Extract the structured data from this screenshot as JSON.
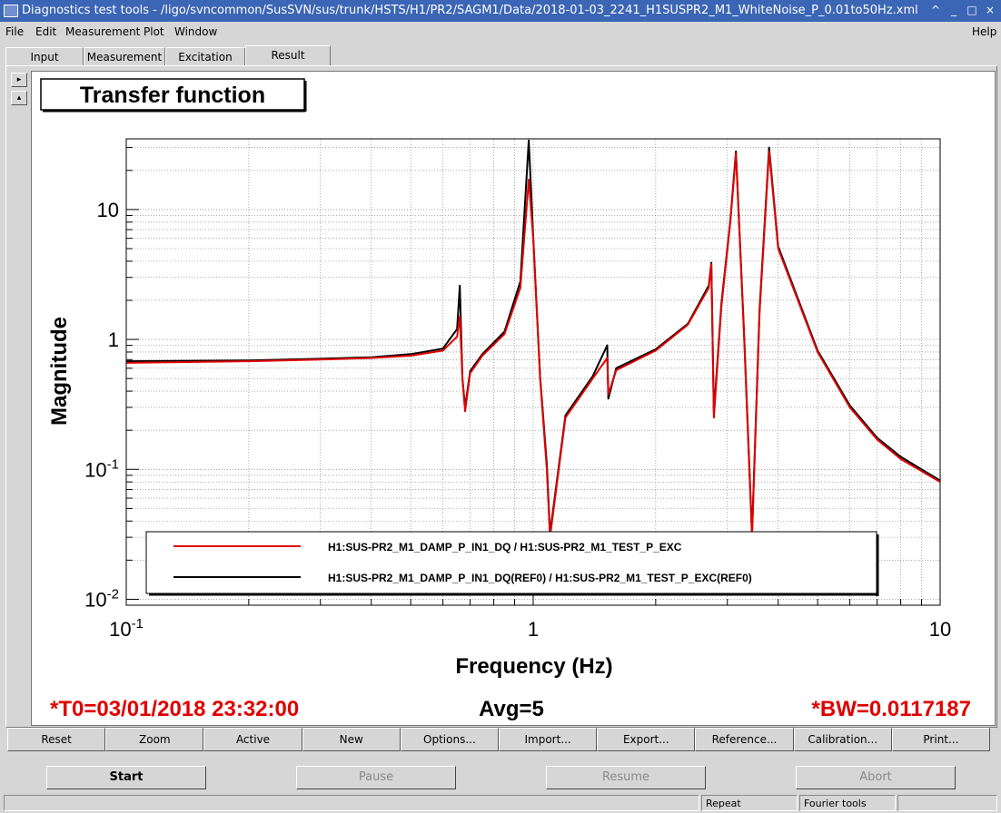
{
  "window": {
    "title": "Diagnostics test tools - /ligo/svncommon/SusSVN/sus/trunk/HSTS/H1/PR2/SAGM1/Data/2018-01-03_2241_H1SUSPR2_M1_WhiteNoise_P_0.01to50Hz.xml",
    "controls": [
      "^",
      "_",
      "□",
      "×"
    ]
  },
  "menu": {
    "file": "File",
    "edit": "Edit",
    "measurement": "Measurement",
    "plot": "Plot",
    "window": "Window",
    "help": "Help"
  },
  "tabs": [
    {
      "label": "Input"
    },
    {
      "label": "Measurement"
    },
    {
      "label": "Excitation"
    },
    {
      "label": "Result",
      "active": true
    }
  ],
  "side_buttons": {
    "up": "▸",
    "down": "▴"
  },
  "plot": {
    "title_box": "Transfer function",
    "t0": "*T0=03/01/2018 23:32:00",
    "avg": "Avg=5",
    "bw": "*BW=0.0117187",
    "legend": [
      {
        "label": "H1:SUS-PR2_M1_DAMP_P_IN1_DQ / H1:SUS-PR2_M1_TEST_P_EXC",
        "color": "#e00000"
      },
      {
        "label": "H1:SUS-PR2_M1_DAMP_P_IN1_DQ(REF0) / H1:SUS-PR2_M1_TEST_P_EXC(REF0)",
        "color": "#000000"
      }
    ]
  },
  "chart_data": {
    "type": "line",
    "title": "Transfer function",
    "xlabel": "Frequency (Hz)",
    "ylabel": "Magnitude",
    "xscale": "log",
    "yscale": "log",
    "xlim": [
      0.1,
      10
    ],
    "ylim": [
      0.009,
      35
    ],
    "x_tick_labels": [
      "10^-1",
      "1",
      "10"
    ],
    "y_tick_labels": [
      "10^-2",
      "10^-1",
      "1",
      "10"
    ],
    "grid": true,
    "legend_position": "bottom",
    "series": [
      {
        "name": "H1:SUS-PR2_M1_DAMP_P_IN1_DQ / H1:SUS-PR2_M1_TEST_P_EXC",
        "color": "#e00000",
        "x": [
          0.1,
          0.2,
          0.3,
          0.4,
          0.5,
          0.6,
          0.65,
          0.66,
          0.67,
          0.68,
          0.7,
          0.75,
          0.85,
          0.93,
          0.975,
          1.0,
          1.04,
          1.08,
          1.1,
          1.2,
          1.4,
          1.52,
          1.53,
          1.6,
          2.0,
          2.4,
          2.7,
          2.74,
          2.78,
          2.9,
          3.05,
          3.15,
          3.3,
          3.45,
          3.6,
          3.8,
          4.0,
          5.0,
          6.0,
          7.0,
          8.0,
          10.0
        ],
        "y": [
          0.66,
          0.68,
          0.7,
          0.72,
          0.75,
          0.82,
          1.05,
          1.5,
          0.5,
          0.28,
          0.55,
          0.75,
          1.1,
          2.5,
          17,
          6,
          0.5,
          0.1,
          0.03,
          0.25,
          0.5,
          0.72,
          0.38,
          0.58,
          0.82,
          1.3,
          2.5,
          3.8,
          0.25,
          1.8,
          8,
          27,
          1.0,
          0.03,
          1.6,
          28,
          5,
          0.8,
          0.3,
          0.17,
          0.12,
          0.08
        ]
      },
      {
        "name": "H1:SUS-PR2_M1_DAMP_P_IN1_DQ(REF0) / H1:SUS-PR2_M1_TEST_P_EXC(REF0)",
        "color": "#000000",
        "x": [
          0.1,
          0.2,
          0.3,
          0.4,
          0.5,
          0.6,
          0.65,
          0.66,
          0.67,
          0.68,
          0.7,
          0.75,
          0.85,
          0.93,
          0.975,
          1.0,
          1.04,
          1.08,
          1.1,
          1.2,
          1.4,
          1.52,
          1.53,
          1.6,
          2.0,
          2.4,
          2.7,
          2.74,
          2.78,
          2.9,
          3.05,
          3.15,
          3.3,
          3.45,
          3.6,
          3.8,
          4.0,
          5.0,
          6.0,
          7.0,
          8.0,
          10.0
        ],
        "y": [
          0.68,
          0.69,
          0.71,
          0.73,
          0.77,
          0.85,
          1.2,
          2.6,
          0.5,
          0.3,
          0.57,
          0.77,
          1.15,
          2.8,
          34,
          6.2,
          0.52,
          0.11,
          0.032,
          0.26,
          0.52,
          0.9,
          0.35,
          0.6,
          0.84,
          1.32,
          2.6,
          3.9,
          0.27,
          1.9,
          8.2,
          28,
          1.05,
          0.032,
          1.7,
          30,
          5.2,
          0.82,
          0.31,
          0.175,
          0.125,
          0.082
        ]
      }
    ]
  },
  "analysis_buttons": [
    "Reset",
    "Zoom",
    "Active",
    "New",
    "Options...",
    "Import...",
    "Export...",
    "Reference...",
    "Calibration...",
    "Print..."
  ],
  "run_buttons": {
    "start": "Start",
    "pause": "Pause",
    "resume": "Resume",
    "abort": "Abort"
  },
  "status": {
    "repeat": "Repeat",
    "fourier": "Fourier tools"
  }
}
